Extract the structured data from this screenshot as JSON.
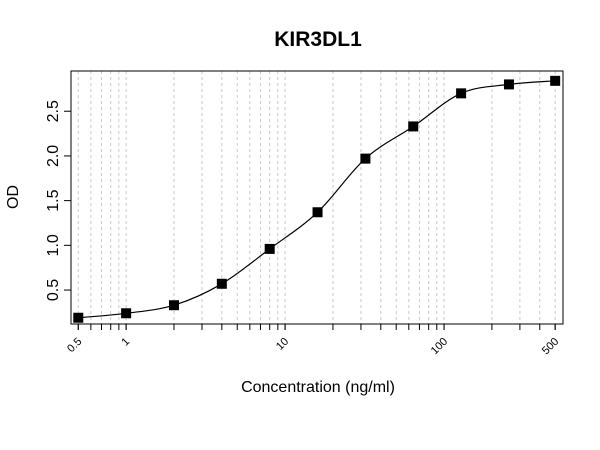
{
  "chart_data": {
    "type": "scatter",
    "title": "KIR3DL1",
    "xlabel": "Concentration (ng/ml)",
    "ylabel": "OD",
    "x_scale": "log",
    "xlim": [
      0.45,
      560
    ],
    "ylim": [
      0.12,
      2.95
    ],
    "x_ticks": [
      0.5,
      1,
      10,
      100,
      500
    ],
    "x_tick_labels": [
      "0.5",
      "1",
      "10",
      "100",
      "500"
    ],
    "y_ticks": [
      0.5,
      1.0,
      1.5,
      2.0,
      2.5
    ],
    "y_tick_labels": [
      "0.5",
      "1.0",
      "1.5",
      "2.0",
      "2.5"
    ],
    "grid": "vertical dashed minor gridlines",
    "legend": "none",
    "fit_curve": true,
    "marker": "filled-square",
    "series": [
      {
        "x": [
          0.5,
          1,
          2,
          4,
          8,
          16,
          32,
          64,
          128,
          256,
          500
        ],
        "y": [
          0.19,
          0.24,
          0.33,
          0.57,
          0.96,
          1.37,
          1.97,
          2.33,
          2.7,
          2.8,
          2.84
        ]
      }
    ]
  }
}
